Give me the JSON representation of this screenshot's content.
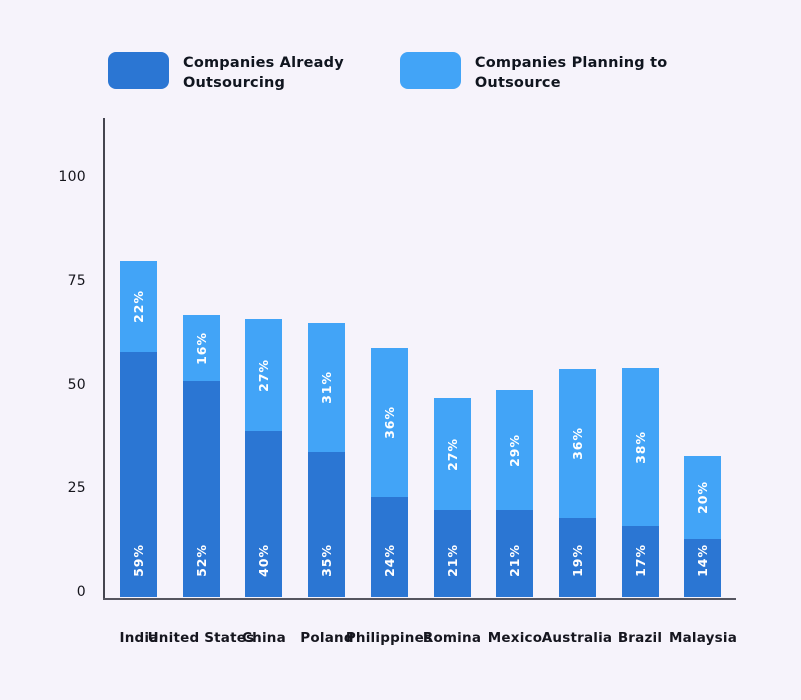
{
  "page": {
    "background": "#f6f3fb",
    "axis_color": "#45454f",
    "tick_label_color": "#15151c",
    "category_label_color": "#16161f",
    "value_label_color": "#ffffff"
  },
  "legend": {
    "items": [
      {
        "label_line1": "Companies Already",
        "label_line2": "Outsourcing",
        "color": "#2b76d3"
      },
      {
        "label_line1": "Companies Planning to",
        "label_line2": "Outsource",
        "color": "#42a4f7"
      }
    ]
  },
  "chart_data": {
    "type": "bar",
    "stacked": true,
    "title": "",
    "xlabel": "",
    "ylabel": "",
    "categories": [
      "India",
      "United States",
      "China",
      "Poland",
      "Philippines",
      "Romina",
      "Mexico",
      "Australia",
      "Brazil",
      "Malaysia"
    ],
    "series": [
      {
        "name": "Companies Already Outsourcing",
        "color": "#2b76d3",
        "values": [
          59,
          52,
          40,
          35,
          24,
          21,
          21,
          19,
          17,
          14
        ]
      },
      {
        "name": "Companies Planning to Outsource",
        "color": "#42a4f7",
        "values": [
          22,
          16,
          27,
          31,
          36,
          27,
          29,
          36,
          38,
          20
        ]
      }
    ],
    "value_suffix": "%",
    "y_ticks": [
      0,
      25,
      50,
      75,
      100
    ],
    "ylim": [
      0,
      113
    ],
    "grid": false,
    "legend_position": "top"
  }
}
